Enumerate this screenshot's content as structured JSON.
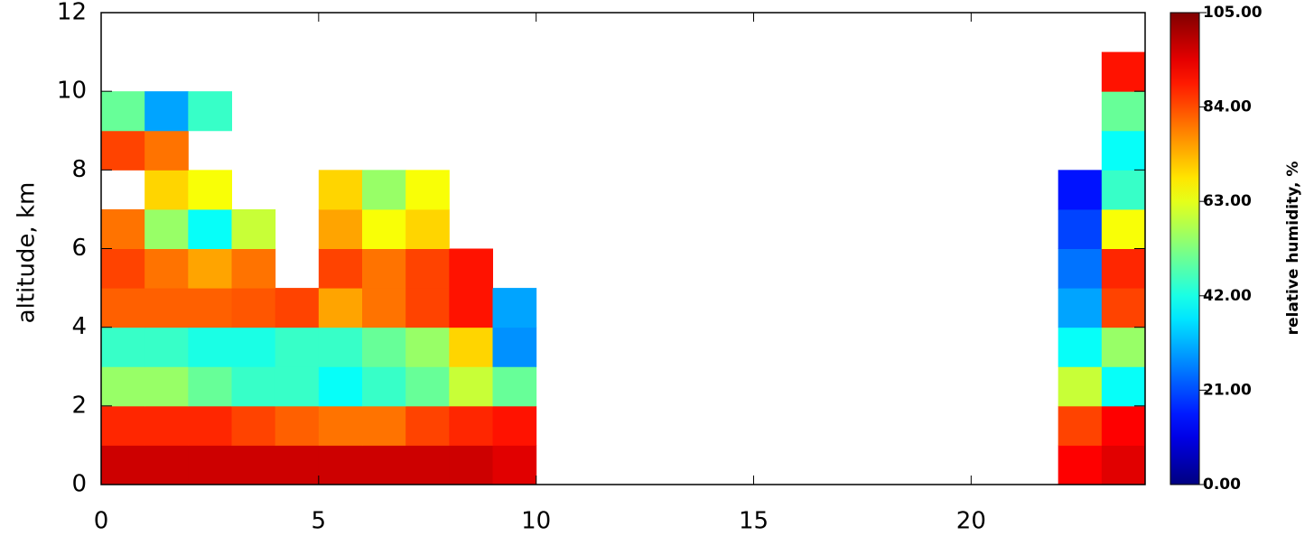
{
  "chart_data": {
    "type": "heatmap",
    "ylabel": "altitude, km",
    "xbins": [
      0,
      1,
      2,
      3,
      4,
      5,
      6,
      7,
      8,
      9,
      10,
      11,
      12,
      13,
      14,
      15,
      16,
      17,
      18,
      19,
      20,
      21,
      22,
      23,
      24
    ],
    "ybins": [
      0,
      1,
      2,
      3,
      4,
      5,
      6,
      7,
      8,
      9,
      10,
      11,
      12
    ],
    "xlim": [
      0,
      24
    ],
    "xticks": [
      0,
      5,
      10,
      15,
      20
    ],
    "ylim": [
      0,
      12
    ],
    "yticks": [
      0,
      2,
      4,
      6,
      8,
      10,
      12
    ],
    "colormap": "jet",
    "z": [
      [
        97,
        97,
        97,
        97,
        97,
        97,
        97,
        97,
        97,
        95,
        null,
        null,
        null,
        null,
        null,
        null,
        null,
        null,
        null,
        null,
        null,
        null,
        92,
        95
      ],
      [
        88,
        88,
        88,
        85,
        82,
        80,
        80,
        85,
        88,
        90,
        null,
        null,
        null,
        null,
        null,
        null,
        null,
        null,
        null,
        null,
        null,
        null,
        85,
        92
      ],
      [
        55,
        55,
        50,
        45,
        45,
        40,
        45,
        50,
        60,
        50,
        null,
        null,
        null,
        null,
        null,
        null,
        null,
        null,
        null,
        null,
        null,
        null,
        60,
        40
      ],
      [
        45,
        45,
        42,
        42,
        45,
        45,
        50,
        55,
        70,
        28,
        null,
        null,
        null,
        null,
        null,
        null,
        null,
        null,
        null,
        null,
        null,
        null,
        40,
        55
      ],
      [
        82,
        82,
        82,
        83,
        85,
        75,
        80,
        85,
        90,
        30,
        null,
        null,
        null,
        null,
        null,
        null,
        null,
        null,
        null,
        null,
        null,
        null,
        30,
        85
      ],
      [
        85,
        80,
        75,
        80,
        null,
        85,
        80,
        85,
        90,
        null,
        null,
        null,
        null,
        null,
        null,
        null,
        null,
        null,
        null,
        null,
        null,
        null,
        25,
        88
      ],
      [
        80,
        55,
        40,
        60,
        null,
        75,
        65,
        70,
        null,
        null,
        null,
        null,
        null,
        null,
        null,
        null,
        null,
        null,
        null,
        null,
        null,
        null,
        20,
        65
      ],
      [
        null,
        70,
        65,
        null,
        null,
        70,
        55,
        65,
        null,
        null,
        null,
        null,
        null,
        null,
        null,
        null,
        null,
        null,
        null,
        null,
        null,
        null,
        15,
        45
      ],
      [
        85,
        80,
        null,
        null,
        null,
        null,
        null,
        null,
        null,
        null,
        null,
        null,
        null,
        null,
        null,
        null,
        null,
        null,
        null,
        null,
        null,
        null,
        null,
        40
      ],
      [
        50,
        30,
        45,
        null,
        null,
        null,
        null,
        null,
        null,
        null,
        null,
        null,
        null,
        null,
        null,
        null,
        null,
        null,
        null,
        null,
        null,
        null,
        null,
        50
      ],
      [
        null,
        null,
        null,
        null,
        null,
        null,
        null,
        null,
        null,
        null,
        null,
        null,
        null,
        null,
        null,
        null,
        null,
        null,
        null,
        null,
        null,
        null,
        null,
        90
      ],
      [
        null,
        null,
        null,
        null,
        null,
        null,
        null,
        null,
        null,
        null,
        null,
        null,
        null,
        null,
        null,
        null,
        null,
        null,
        null,
        null,
        null,
        null,
        null,
        null
      ]
    ],
    "colorbar": {
      "label": "relative humidity, %",
      "lim": [
        0,
        105
      ],
      "ticks": [
        {
          "value": 0,
          "label": "0.00"
        },
        {
          "value": 21,
          "label": "21.00"
        },
        {
          "value": 42,
          "label": "42.00"
        },
        {
          "value": 63,
          "label": "63.00"
        },
        {
          "value": 84,
          "label": "84.00"
        },
        {
          "value": 105,
          "label": "105.00"
        }
      ]
    }
  }
}
